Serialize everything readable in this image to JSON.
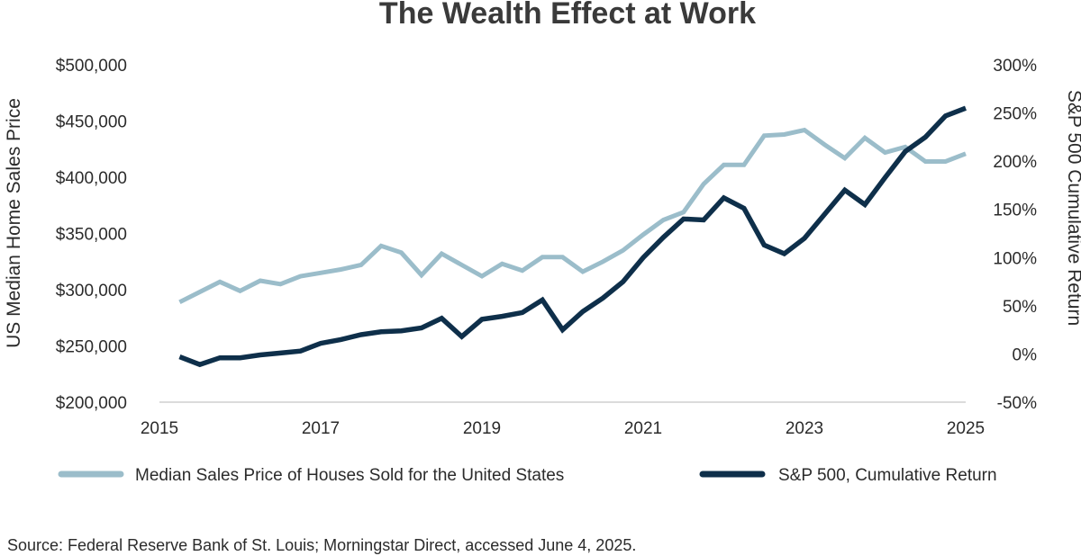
{
  "chart_data": {
    "type": "line",
    "title": "The Wealth Effect at Work",
    "ylabel_left": "US Median Home Sales Price",
    "ylabel_right": "S&P 500 Cumulative Return",
    "x_ticks": [
      "2015",
      "2017",
      "2019",
      "2021",
      "2023",
      "2025"
    ],
    "x_range": [
      2015,
      2025
    ],
    "y_left_range": [
      200000,
      500000
    ],
    "y_left_ticks": [
      "$500,000",
      "$450,000",
      "$400,000",
      "$350,000",
      "$300,000",
      "$250,000",
      "$200,000"
    ],
    "y_right_range": [
      -50,
      300
    ],
    "y_right_ticks": [
      "300%",
      "250%",
      "200%",
      "150%",
      "100%",
      "50%",
      "0%",
      "-50%"
    ],
    "series": [
      {
        "name": "Median Sales Price of Houses Sold for the United States",
        "axis": "left",
        "color": "#9bbdca",
        "x": [
          2015.25,
          2015.5,
          2015.75,
          2016.0,
          2016.25,
          2016.5,
          2016.75,
          2017.0,
          2017.25,
          2017.5,
          2017.75,
          2018.0,
          2018.25,
          2018.5,
          2018.75,
          2019.0,
          2019.25,
          2019.5,
          2019.75,
          2020.0,
          2020.25,
          2020.5,
          2020.75,
          2021.0,
          2021.25,
          2021.5,
          2021.75,
          2022.0,
          2022.25,
          2022.5,
          2022.75,
          2023.0,
          2023.25,
          2023.5,
          2023.75,
          2024.0,
          2024.25,
          2024.5,
          2024.75,
          2025.0
        ],
        "values": [
          289000,
          298000,
          307000,
          299000,
          308000,
          305000,
          312000,
          315000,
          318000,
          322000,
          339000,
          333000,
          313000,
          332000,
          322000,
          312000,
          323000,
          317000,
          329000,
          329000,
          316000,
          325000,
          335000,
          349000,
          362000,
          369000,
          394000,
          411000,
          411000,
          437000,
          438000,
          442000,
          429000,
          417000,
          435000,
          422000,
          427000,
          414000,
          414000,
          421000
        ]
      },
      {
        "name": "S&P 500, Cumulative Return",
        "axis": "right",
        "color": "#0e2f4a",
        "x": [
          2015.25,
          2015.5,
          2015.75,
          2016.0,
          2016.25,
          2016.5,
          2016.75,
          2017.0,
          2017.25,
          2017.5,
          2017.75,
          2018.0,
          2018.25,
          2018.5,
          2018.75,
          2019.0,
          2019.25,
          2019.5,
          2019.75,
          2020.0,
          2020.25,
          2020.5,
          2020.75,
          2021.0,
          2021.25,
          2021.5,
          2021.75,
          2022.0,
          2022.25,
          2022.5,
          2022.75,
          2023.0,
          2023.25,
          2023.5,
          2023.75,
          2024.0,
          2024.25,
          2024.5,
          2024.75,
          2025.0
        ],
        "values": [
          -3,
          -11,
          -4,
          -4,
          -1,
          1,
          3,
          11,
          15,
          20,
          23,
          24,
          27,
          37,
          18,
          36,
          39,
          43,
          56,
          25,
          44,
          58,
          75,
          100,
          121,
          140,
          139,
          162,
          151,
          113,
          104,
          120,
          145,
          170,
          155,
          183,
          210,
          225,
          247,
          255
        ]
      }
    ],
    "source": "Source: Federal Reserve Bank of St. Louis; Morningstar Direct, accessed June 4, 2025."
  }
}
